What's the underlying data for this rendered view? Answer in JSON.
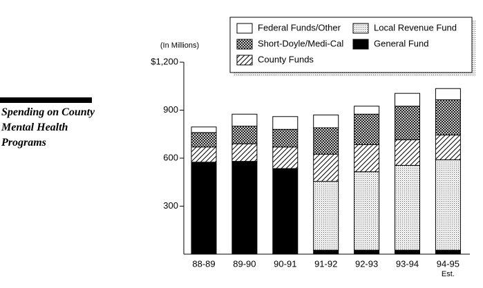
{
  "chart_data": {
    "type": "stacked_bar",
    "title": "Spending on County Mental Health Programs",
    "y_axis_label": "(In Millions)",
    "categories": [
      "88-89",
      "89-90",
      "90-91",
      "91-92",
      "92-93",
      "93-94",
      "94-95"
    ],
    "category_notes": [
      null,
      null,
      null,
      null,
      null,
      null,
      "Est."
    ],
    "series": [
      {
        "name": "General Fund",
        "color": "#000000",
        "pattern": "solid",
        "values": [
          575,
          580,
          535,
          25,
          25,
          25,
          25
        ]
      },
      {
        "name": "Local Revenue Fund",
        "color": "#ffffff",
        "pattern": "dots",
        "values": [
          0,
          0,
          0,
          430,
          490,
          530,
          565
        ]
      },
      {
        "name": "County Funds",
        "color": "#ffffff",
        "pattern": "diagonal",
        "values": [
          95,
          110,
          135,
          170,
          170,
          160,
          155
        ]
      },
      {
        "name": "Short-Doyle/Medi-Cal",
        "color": "#ffffff",
        "pattern": "crosshatch",
        "values": [
          90,
          110,
          110,
          165,
          190,
          210,
          220
        ]
      },
      {
        "name": "Federal Funds/Other",
        "color": "#ffffff",
        "pattern": "none",
        "values": [
          35,
          75,
          80,
          80,
          50,
          80,
          70
        ]
      }
    ],
    "ylim": [
      0,
      1200
    ],
    "yticks": [
      300,
      600,
      900,
      {
        "value": 1200,
        "label": "$1,200"
      }
    ]
  }
}
